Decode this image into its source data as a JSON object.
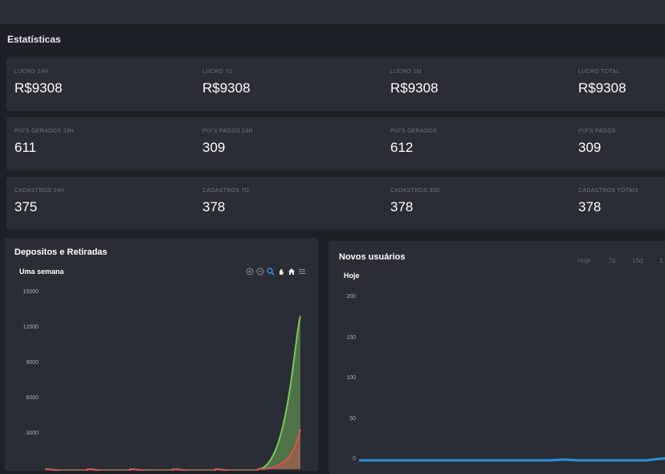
{
  "section_title": "Estatísticas",
  "stats": [
    [
      {
        "label": "LUCRO 24H",
        "value": "R$9308"
      },
      {
        "label": "LUCRO 7D",
        "value": "R$9308"
      },
      {
        "label": "LUCRO 1M",
        "value": "R$9308"
      },
      {
        "label": "LUCRO TOTAL",
        "value": "R$9308"
      }
    ],
    [
      {
        "label": "PIX'S GERADOS 24H",
        "value": "611"
      },
      {
        "label": "PIX'S PAGOS 24H",
        "value": "309"
      },
      {
        "label": "PIX'S GERADOS",
        "value": "612"
      },
      {
        "label": "PIX'S PAGOS",
        "value": "309"
      }
    ],
    [
      {
        "label": "CADASTROS 24H",
        "value": "375"
      },
      {
        "label": "CADASTROS 7D",
        "value": "378"
      },
      {
        "label": "CADASTROS 30D",
        "value": "378"
      },
      {
        "label": "CADASTROS TOTAIS",
        "value": "378"
      }
    ]
  ],
  "deposits_panel": {
    "title": "Depositos e Retiradas",
    "subtitle": "Uma semana",
    "toolbar_icons": [
      "zoom-in-icon",
      "zoom-out-icon",
      "zoom-select-icon",
      "pan-icon",
      "reset-home-icon",
      "menu-icon"
    ],
    "colors": {
      "deposits": "#7bc95a",
      "withdrawals": "#d9534f",
      "active_tool": "#3b8fe0"
    }
  },
  "users_panel": {
    "title": "Novos usuários",
    "subtitle": "Hoje",
    "range_buttons": [
      "Hoje",
      "7d",
      "15d",
      "1"
    ],
    "colors": {
      "line": "#2f8fd8"
    }
  },
  "chart_data": [
    {
      "type": "area",
      "yticks": [
        "15000",
        "12000",
        "9000",
        "6000",
        "3000"
      ],
      "ylim": [
        0,
        15000
      ],
      "series": [
        {
          "values": [
            0,
            0,
            0,
            0,
            0,
            0,
            13000
          ]
        },
        {
          "values": [
            0,
            0,
            0,
            0,
            0,
            0,
            3400
          ]
        }
      ]
    },
    {
      "type": "line",
      "yticks": [
        "200",
        "150",
        "100",
        "50",
        "0"
      ],
      "ylim": [
        0,
        200
      ],
      "series": [
        {
          "values": [
            0,
            0,
            0,
            0,
            0,
            0,
            0,
            0,
            0,
            0,
            0,
            0,
            0,
            0,
            0,
            1,
            0,
            0,
            0,
            0,
            0,
            0,
            2,
            3
          ]
        }
      ]
    }
  ]
}
